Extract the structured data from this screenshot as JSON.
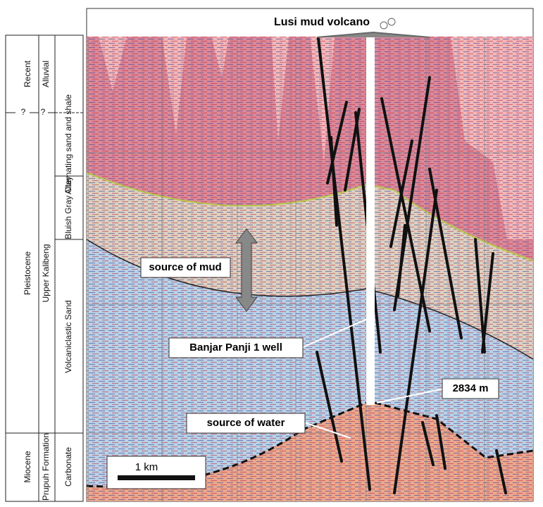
{
  "figure": {
    "title": "Lusi mud volcano",
    "annotations": {
      "mud": "source of mud",
      "well": "Banjar Panji 1 well",
      "depth": "2834 m",
      "water": "source of water",
      "scale": "1 km"
    },
    "column": {
      "ages": [
        "Recent",
        "Pleistocene",
        "Miocene"
      ],
      "formations": [
        "Alluvial",
        "Upper Kalibeng",
        "Prupuh Formation"
      ],
      "lithology": [
        "Alternating sand and shale",
        "Bluish Gray Clay",
        "Volcaniclastic Sand",
        "Carbonate"
      ],
      "uncertain": "?"
    }
  }
}
